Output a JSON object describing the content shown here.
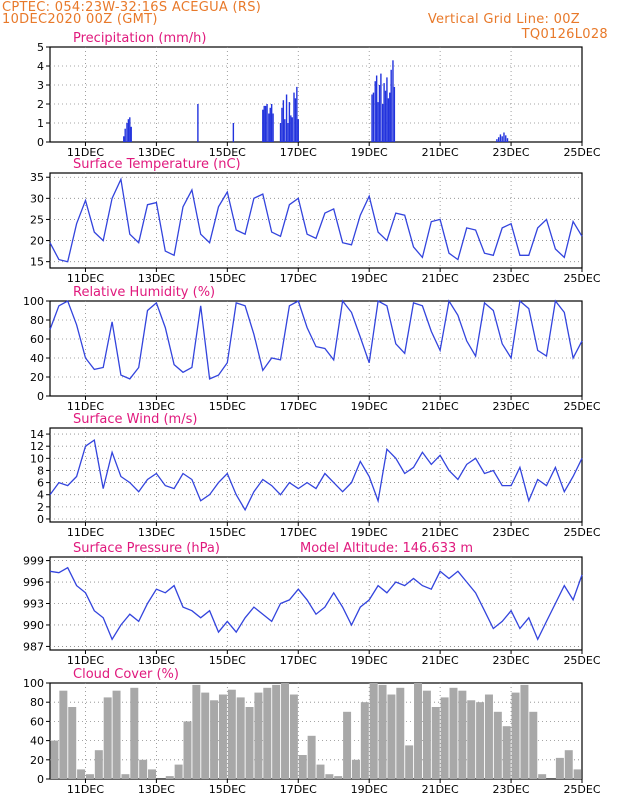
{
  "header": {
    "line1_left": "CPTEC:  054:23W-32:16S  ACEGUA (RS)",
    "line2_left": "10DEC2020 00Z (GMT)",
    "line1_right": "Vertical Grid Line: 00Z",
    "line2_right": "TQ0126L028"
  },
  "colors": {
    "header": "#e8792a",
    "title": "#e0197d",
    "line": "#3344dd",
    "bar": "#2233dd",
    "cloud": "#a8a8a8",
    "axis": "#000000",
    "grid": "#888888"
  },
  "x_axis": {
    "start": "10DEC2020 00Z",
    "range_days": [
      0,
      15
    ],
    "tick_days": [
      1,
      3,
      5,
      7,
      9,
      11,
      13,
      15
    ],
    "tick_labels": [
      "11DEC",
      "13DEC",
      "15DEC",
      "17DEC",
      "19DEC",
      "21DEC",
      "23DEC",
      "25DEC"
    ]
  },
  "chart_data": [
    {
      "type": "bar",
      "title": "Precipitation (mm/h)",
      "ylim": [
        0,
        5
      ],
      "yticks": [
        0,
        1,
        2,
        3,
        4,
        5
      ],
      "grid": true,
      "x": [
        2.08,
        2.12,
        2.17,
        2.21,
        2.25,
        2.29,
        4.17,
        5.17,
        6.0,
        6.04,
        6.08,
        6.12,
        6.17,
        6.21,
        6.25,
        6.29,
        6.5,
        6.54,
        6.58,
        6.62,
        6.67,
        6.71,
        6.75,
        6.79,
        6.83,
        6.88,
        6.92,
        6.96,
        7.0,
        9.08,
        9.12,
        9.17,
        9.21,
        9.25,
        9.29,
        9.33,
        9.38,
        9.42,
        9.46,
        9.5,
        9.54,
        9.58,
        9.62,
        9.67,
        9.71,
        12.6,
        12.65,
        12.7,
        12.75,
        12.8,
        12.85,
        12.9
      ],
      "values": [
        0.3,
        0.7,
        1.0,
        1.2,
        1.3,
        0.8,
        2.0,
        1.0,
        1.7,
        1.9,
        1.9,
        2.0,
        1.5,
        1.8,
        2.0,
        1.5,
        1.0,
        1.8,
        2.2,
        1.2,
        2.5,
        1.0,
        2.1,
        1.4,
        1.3,
        2.6,
        2.3,
        2.9,
        1.2,
        2.5,
        2.6,
        3.2,
        3.5,
        2.1,
        3.0,
        3.6,
        2.0,
        3.1,
        2.7,
        3.4,
        2.3,
        2.6,
        3.8,
        4.3,
        2.9,
        0.15,
        0.25,
        0.4,
        0.3,
        0.5,
        0.35,
        0.2
      ]
    },
    {
      "type": "line",
      "title": "Surface Temperature (nC)",
      "ylim": [
        13.5,
        36
      ],
      "yticks": [
        15,
        20,
        25,
        30,
        35
      ],
      "grid": true,
      "x": [
        0,
        0.25,
        0.5,
        0.75,
        1.0,
        1.25,
        1.5,
        1.75,
        2.0,
        2.25,
        2.5,
        2.75,
        3.0,
        3.25,
        3.5,
        3.75,
        4.0,
        4.25,
        4.5,
        4.75,
        5.0,
        5.25,
        5.5,
        5.75,
        6.0,
        6.25,
        6.5,
        6.75,
        7.0,
        7.25,
        7.5,
        7.75,
        8.0,
        8.25,
        8.5,
        8.75,
        9.0,
        9.25,
        9.5,
        9.75,
        10.0,
        10.25,
        10.5,
        10.75,
        11.0,
        11.25,
        11.5,
        11.75,
        12.0,
        12.25,
        12.5,
        12.75,
        13.0,
        13.25,
        13.5,
        13.75,
        14.0,
        14.25,
        14.5,
        14.75,
        15.0
      ],
      "values": [
        19.5,
        15.5,
        15.0,
        24.0,
        29.5,
        22.0,
        20.0,
        30.0,
        34.5,
        21.5,
        19.5,
        28.5,
        29.0,
        17.5,
        16.5,
        28.0,
        32.0,
        21.5,
        19.5,
        28.0,
        31.5,
        22.5,
        21.5,
        30.0,
        31.0,
        22.0,
        21.0,
        28.5,
        30.0,
        21.5,
        20.5,
        26.5,
        27.5,
        19.5,
        19.0,
        26.0,
        30.5,
        22.0,
        20.0,
        26.5,
        26.0,
        18.5,
        16.0,
        24.5,
        25.0,
        17.0,
        15.5,
        23.0,
        22.5,
        17.0,
        16.5,
        23.0,
        24.0,
        16.5,
        16.5,
        23.0,
        25.0,
        18.0,
        16.0,
        24.5,
        21.0
      ]
    },
    {
      "type": "line",
      "title": "Relative Humidity (%)",
      "ylim": [
        0,
        100
      ],
      "yticks": [
        0,
        20,
        40,
        60,
        80,
        100
      ],
      "grid": true,
      "x": [
        0,
        0.25,
        0.5,
        0.75,
        1.0,
        1.25,
        1.5,
        1.75,
        2.0,
        2.25,
        2.5,
        2.75,
        3.0,
        3.25,
        3.5,
        3.75,
        4.0,
        4.25,
        4.5,
        4.75,
        5.0,
        5.25,
        5.5,
        5.75,
        6.0,
        6.25,
        6.5,
        6.75,
        7.0,
        7.25,
        7.5,
        7.75,
        8.0,
        8.25,
        8.5,
        8.75,
        9.0,
        9.25,
        9.5,
        9.75,
        10.0,
        10.25,
        10.5,
        10.75,
        11.0,
        11.25,
        11.5,
        11.75,
        12.0,
        12.25,
        12.5,
        12.75,
        13.0,
        13.25,
        13.5,
        13.75,
        14.0,
        14.25,
        14.5,
        14.75,
        15.0
      ],
      "values": [
        70,
        95,
        100,
        75,
        40,
        28,
        30,
        78,
        22,
        18,
        30,
        90,
        98,
        72,
        33,
        25,
        30,
        95,
        18,
        22,
        35,
        98,
        95,
        65,
        27,
        40,
        38,
        95,
        100,
        72,
        52,
        50,
        38,
        100,
        88,
        62,
        35,
        100,
        95,
        55,
        45,
        98,
        95,
        68,
        48,
        100,
        85,
        58,
        42,
        98,
        90,
        55,
        40,
        100,
        92,
        48,
        42,
        100,
        88,
        40,
        58
      ]
    },
    {
      "type": "line",
      "title": "Surface Wind (m/s)",
      "ylim": [
        -0.5,
        15
      ],
      "yticks": [
        0,
        2,
        4,
        6,
        8,
        10,
        12,
        14
      ],
      "grid": true,
      "x": [
        0,
        0.25,
        0.5,
        0.75,
        1.0,
        1.25,
        1.5,
        1.75,
        2.0,
        2.25,
        2.5,
        2.75,
        3.0,
        3.25,
        3.5,
        3.75,
        4.0,
        4.25,
        4.5,
        4.75,
        5.0,
        5.25,
        5.5,
        5.75,
        6.0,
        6.25,
        6.5,
        6.75,
        7.0,
        7.25,
        7.5,
        7.75,
        8.0,
        8.25,
        8.5,
        8.75,
        9.0,
        9.25,
        9.5,
        9.75,
        10.0,
        10.25,
        10.5,
        10.75,
        11.0,
        11.25,
        11.5,
        11.75,
        12.0,
        12.25,
        12.5,
        12.75,
        13.0,
        13.25,
        13.5,
        13.75,
        14.0,
        14.25,
        14.5,
        14.75,
        15.0
      ],
      "values": [
        4.0,
        6.0,
        5.5,
        7.0,
        12.0,
        13.0,
        5.0,
        11.0,
        7.0,
        6.0,
        4.5,
        6.5,
        7.5,
        5.5,
        5.0,
        7.5,
        6.5,
        3.0,
        4.0,
        6.0,
        7.5,
        4.0,
        1.5,
        4.5,
        6.5,
        5.5,
        4.0,
        6.0,
        5.0,
        6.0,
        5.0,
        7.5,
        6.0,
        4.5,
        6.0,
        9.5,
        7.0,
        3.0,
        11.5,
        10.0,
        7.5,
        8.5,
        11.0,
        9.0,
        10.5,
        8.0,
        6.5,
        9.0,
        10.0,
        7.5,
        8.0,
        5.5,
        5.5,
        8.5,
        3.0,
        6.5,
        5.5,
        8.5,
        4.5,
        7.0,
        10.0
      ]
    },
    {
      "type": "line",
      "title": "Surface Pressure (hPa)",
      "annotations": [
        "Model Altitude: 146.633 m"
      ],
      "ylim": [
        986.5,
        999.5
      ],
      "yticks": [
        987,
        990,
        993,
        996,
        999
      ],
      "ytick_labels": [
        "987",
        "990",
        "993",
        "996",
        "999"
      ],
      "grid": true,
      "x": [
        0,
        0.25,
        0.5,
        0.75,
        1.0,
        1.25,
        1.5,
        1.75,
        2.0,
        2.25,
        2.5,
        2.75,
        3.0,
        3.25,
        3.5,
        3.75,
        4.0,
        4.25,
        4.5,
        4.75,
        5.0,
        5.25,
        5.5,
        5.75,
        6.0,
        6.25,
        6.5,
        6.75,
        7.0,
        7.25,
        7.5,
        7.75,
        8.0,
        8.25,
        8.5,
        8.75,
        9.0,
        9.25,
        9.5,
        9.75,
        10.0,
        10.25,
        10.5,
        10.75,
        11.0,
        11.25,
        11.5,
        11.75,
        12.0,
        12.25,
        12.5,
        12.75,
        13.0,
        13.25,
        13.5,
        13.75,
        14.0,
        14.25,
        14.5,
        14.75,
        15.0
      ],
      "values": [
        997.5,
        997.3,
        998.0,
        995.5,
        994.5,
        992.0,
        991.0,
        988.0,
        990.0,
        991.5,
        990.5,
        993.0,
        995.0,
        994.5,
        995.5,
        992.5,
        992.0,
        991.0,
        992.0,
        989.0,
        990.5,
        989.0,
        991.0,
        992.5,
        991.5,
        990.5,
        993.0,
        993.5,
        995.0,
        993.5,
        991.5,
        992.5,
        994.5,
        992.5,
        990.0,
        992.5,
        993.5,
        995.5,
        994.5,
        996.0,
        995.5,
        996.5,
        995.5,
        995.0,
        997.5,
        996.5,
        997.5,
        996.0,
        994.5,
        992.0,
        989.5,
        990.5,
        992.0,
        989.5,
        991.0,
        988.0,
        990.5,
        993.0,
        995.5,
        993.5,
        997.0
      ]
    },
    {
      "type": "bar",
      "title": "Cloud Cover (%)",
      "ylim": [
        0,
        100
      ],
      "yticks": [
        0,
        20,
        40,
        60,
        80,
        100
      ],
      "grid": true,
      "x": [
        0.0,
        0.25,
        0.5,
        0.75,
        1.0,
        1.25,
        1.5,
        1.75,
        2.0,
        2.25,
        2.5,
        2.75,
        3.0,
        3.25,
        3.5,
        3.75,
        4.0,
        4.25,
        4.5,
        4.75,
        5.0,
        5.25,
        5.5,
        5.75,
        6.0,
        6.25,
        6.5,
        6.75,
        7.0,
        7.25,
        7.5,
        7.75,
        8.0,
        8.25,
        8.5,
        8.75,
        9.0,
        9.25,
        9.5,
        9.75,
        10.0,
        10.25,
        10.5,
        10.75,
        11.0,
        11.25,
        11.5,
        11.75,
        12.0,
        12.25,
        12.5,
        12.75,
        13.0,
        13.25,
        13.5,
        13.75,
        14.0,
        14.25,
        14.5,
        14.75
      ],
      "values": [
        40,
        92,
        75,
        10,
        5,
        30,
        85,
        92,
        5,
        95,
        20,
        10,
        0,
        3,
        15,
        60,
        98,
        90,
        82,
        88,
        93,
        85,
        75,
        90,
        95,
        98,
        100,
        88,
        25,
        45,
        15,
        5,
        3,
        70,
        20,
        80,
        100,
        98,
        88,
        95,
        35,
        100,
        92,
        75,
        85,
        95,
        92,
        82,
        80,
        88,
        70,
        55,
        90,
        98,
        70,
        5,
        0,
        22,
        30,
        10
      ]
    }
  ]
}
